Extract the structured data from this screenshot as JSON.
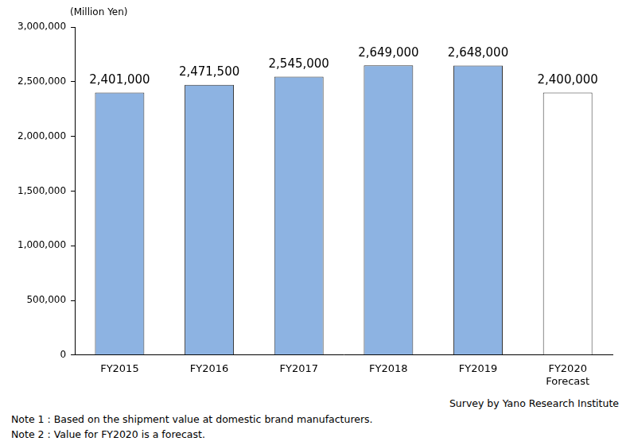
{
  "chart_data": {
    "type": "bar",
    "y_label": "(Million Yen)",
    "categories": [
      "FY2015",
      "FY2016",
      "FY2017",
      "FY2018",
      "FY2019",
      [
        "FY2020",
        "Forecast"
      ]
    ],
    "values": [
      2401000,
      2471500,
      2545000,
      2649000,
      2648000,
      2400000
    ],
    "value_labels": [
      "2,401,000",
      "2,471,500",
      "2,545,000",
      "2,649,000",
      "2,648,000",
      "2,400,000"
    ],
    "colors": [
      "#8db3e2",
      "#8db3e2",
      "#8db3e2",
      "#8db3e2",
      "#8db3e2",
      "#ffffff"
    ],
    "ylim": [
      0,
      3000000
    ],
    "yticks": [
      0,
      {
        "value": 500000,
        "label": "500,000"
      },
      {
        "value": 1000000,
        "label": "1,000,000"
      },
      {
        "value": 1500000,
        "label": "1,500,000"
      },
      {
        "value": 2000000,
        "label": "2,000,000"
      },
      {
        "value": 2500000,
        "label": "2,500,000"
      },
      {
        "value": 3000000,
        "label": "3,000,000"
      }
    ],
    "grid": false,
    "data_labels": true,
    "source": "Survey by Yano Research Institute",
    "annotations": [
      "Note 1 : Based on the shipment value at domestic brand manufacturers.",
      "Note 2 : Value for FY2020 is a forecast."
    ]
  }
}
